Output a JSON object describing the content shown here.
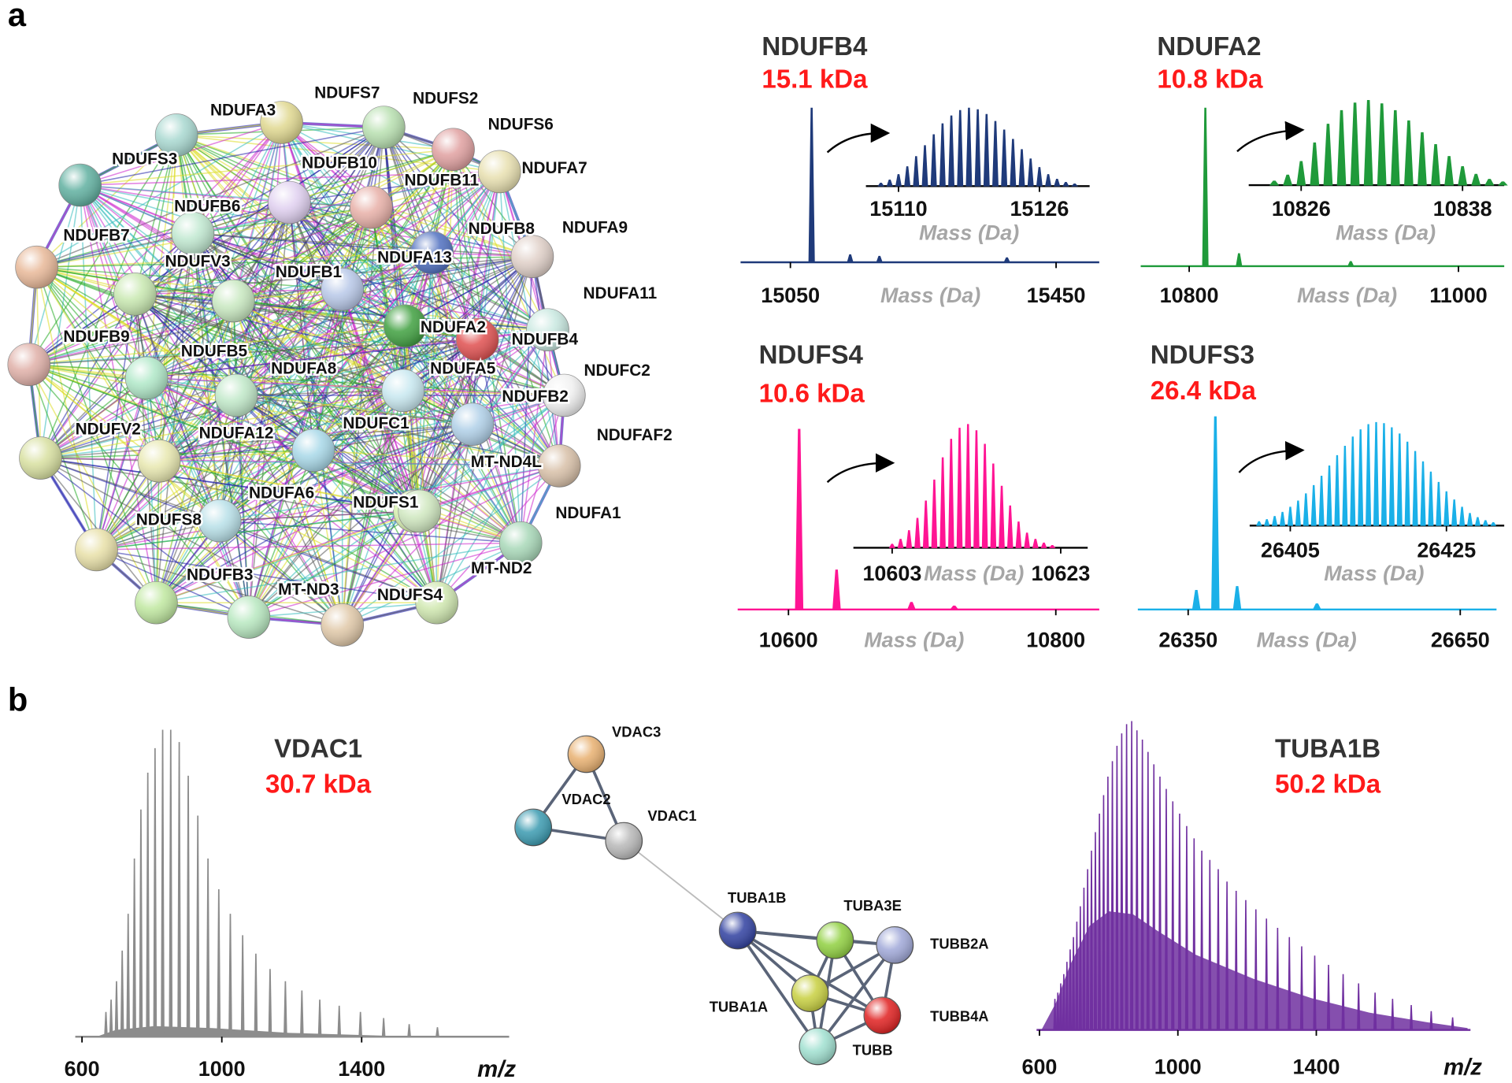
{
  "panel_labels": [
    "a",
    "b"
  ],
  "network_a": {
    "nodes": [
      {
        "label": "NDUFA3"
      },
      {
        "label": "NDUFS7"
      },
      {
        "label": "NDUFS2"
      },
      {
        "label": "NDUFS6"
      },
      {
        "label": "NDUFS3"
      },
      {
        "label": "NDUFB10"
      },
      {
        "label": "NDUFB11"
      },
      {
        "label": "NDUFA7"
      },
      {
        "label": "NDUFB6"
      },
      {
        "label": "NDUFB7"
      },
      {
        "label": "NDUFB8"
      },
      {
        "label": "NDUFA9"
      },
      {
        "label": "NDUFA13"
      },
      {
        "label": "NDUFB1"
      },
      {
        "label": "NDUFV3"
      },
      {
        "label": "NDUFA2"
      },
      {
        "label": "NDUFA11"
      },
      {
        "label": "NDUFB4"
      },
      {
        "label": "NDUFB9"
      },
      {
        "label": "NDUFB5"
      },
      {
        "label": "NDUFA8"
      },
      {
        "label": "NDUFA5"
      },
      {
        "label": "NDUFC2"
      },
      {
        "label": "NDUFB2"
      },
      {
        "label": "NDUFC1"
      },
      {
        "label": "NDUFAF2"
      },
      {
        "label": "NDUFV2"
      },
      {
        "label": "NDUFA12"
      },
      {
        "label": "NDUFS1"
      },
      {
        "label": "NDUFA6"
      },
      {
        "label": "MT-ND4L"
      },
      {
        "label": "NDUFA1"
      },
      {
        "label": "NDUFS8"
      },
      {
        "label": "NDUFB3"
      },
      {
        "label": "MT-ND3"
      },
      {
        "label": "NDUFS4"
      },
      {
        "label": "MT-ND2"
      }
    ]
  },
  "network_b": {
    "nodes": [
      {
        "label": "VDAC3"
      },
      {
        "label": "VDAC2"
      },
      {
        "label": "VDAC1"
      },
      {
        "label": "TUBA1B"
      },
      {
        "label": "TUBA3E"
      },
      {
        "label": "TUBB2A"
      },
      {
        "label": "TUBA1A"
      },
      {
        "label": "TUBB4A"
      },
      {
        "label": "TUBB"
      }
    ]
  },
  "chart_data": [
    {
      "type": "spectrum",
      "title": "NDUFB4",
      "subtitle": "15.1 kDa",
      "xlabel": "Mass (Da)",
      "color": "#1f3a7a",
      "xlim": [
        14975,
        15515
      ],
      "xticks": [
        15050,
        15450
      ],
      "ylim": [
        0,
        100
      ],
      "x": [
        15082,
        15140,
        15184,
        15376
      ],
      "values": [
        100,
        5,
        4,
        3
      ],
      "inset": {
        "xlabel": "Mass (Da)",
        "xlim": [
          15106.3,
          15131.7
        ],
        "xticks": [
          15110,
          15126
        ],
        "ylim": [
          0,
          100
        ],
        "x": [
          15108,
          15109,
          15110,
          15111,
          15112,
          15113,
          15114,
          15115,
          15116,
          15117,
          15118,
          15119,
          15120,
          15121,
          15122,
          15123,
          15124,
          15125,
          15126,
          15127,
          15128,
          15129,
          15130
        ],
        "values": [
          4,
          8,
          15,
          25,
          38,
          52,
          66,
          80,
          90,
          97,
          100,
          98,
          92,
          83,
          72,
          60,
          47,
          35,
          24,
          15,
          9,
          5,
          3
        ]
      }
    },
    {
      "type": "spectrum",
      "title": "NDUFA2",
      "subtitle": "10.8 kDa",
      "xlabel": "Mass (Da)",
      "color": "#1f9a3a",
      "xlim": [
        10764,
        11034
      ],
      "xticks": [
        10800,
        11000
      ],
      "ylim": [
        0,
        100
      ],
      "x": [
        10812,
        10837,
        10920
      ],
      "values": [
        100,
        8,
        3
      ],
      "inset": {
        "xlabel": "Mass (Da)",
        "xlim": [
          10822.1,
          10841.1
        ],
        "xticks": [
          10826,
          10838
        ],
        "ylim": [
          0,
          100
        ],
        "x": [
          10824,
          10825,
          10826,
          10827,
          10828,
          10829,
          10830,
          10831,
          10832,
          10833,
          10834,
          10835,
          10836,
          10837,
          10838,
          10839,
          10840,
          10841
        ],
        "values": [
          5,
          12,
          28,
          50,
          72,
          88,
          97,
          100,
          96,
          88,
          76,
          62,
          48,
          34,
          22,
          13,
          7,
          4
        ]
      }
    },
    {
      "type": "spectrum",
      "title": "NDUFS4",
      "subtitle": "10.6 kDa",
      "xlabel": "Mass (Da)",
      "color": "#ff1493",
      "xlim": [
        10562,
        10832.5
      ],
      "xticks": [
        10600,
        10800
      ],
      "ylim": [
        0,
        100
      ],
      "x": [
        10608,
        10636,
        10692,
        10724
      ],
      "values": [
        100,
        22,
        4,
        2
      ],
      "inset": {
        "xlabel": "Mass (Da)",
        "xlim": [
          10598.4,
          10626.2
        ],
        "xticks": [
          10603,
          10623
        ],
        "ylim": [
          0,
          100
        ],
        "x": [
          10603,
          10604,
          10605,
          10606,
          10607,
          10608,
          10609,
          10610,
          10611,
          10612,
          10613,
          10614,
          10615,
          10616,
          10617,
          10618,
          10619,
          10620,
          10621,
          10622
        ],
        "values": [
          3,
          7,
          14,
          24,
          38,
          55,
          73,
          88,
          97,
          100,
          95,
          84,
          68,
          50,
          34,
          21,
          12,
          7,
          4,
          2
        ]
      }
    },
    {
      "type": "spectrum",
      "title": "NDUFS3",
      "subtitle": "26.4 kDa",
      "xlabel": "Mass (Da)",
      "color": "#1ab0e8",
      "xlim": [
        26294.5,
        26690
      ],
      "xticks": [
        26350,
        26650
      ],
      "ylim": [
        0,
        100
      ],
      "x": [
        26359,
        26380,
        26404,
        26492
      ],
      "values": [
        10,
        100,
        12,
        3
      ],
      "inset": {
        "xlabel": "Mass (Da)",
        "xlim": [
          26399.8,
          26432.4
        ],
        "xticks": [
          26405,
          26425
        ],
        "ylim": [
          0,
          100
        ],
        "x": [
          26401,
          26402,
          26403,
          26404,
          26405,
          26406,
          26407,
          26408,
          26409,
          26410,
          26411,
          26412,
          26413,
          26414,
          26415,
          26416,
          26417,
          26418,
          26419,
          26420,
          26421,
          26422,
          26423,
          26424,
          26425,
          26426,
          26427,
          26428,
          26429,
          26430,
          26431
        ],
        "values": [
          4,
          6,
          9,
          13,
          18,
          24,
          31,
          39,
          48,
          58,
          68,
          77,
          86,
          93,
          98,
          100,
          99,
          95,
          89,
          81,
          72,
          62,
          52,
          42,
          33,
          25,
          18,
          12,
          8,
          5,
          3
        ]
      }
    },
    {
      "type": "spectrum",
      "title": "VDAC1",
      "subtitle": "30.7 kDa",
      "xlabel": "m/z",
      "color": "#8c8c8c",
      "xlim": [
        580.7,
        1822
      ],
      "xticks": [
        600,
        1000,
        1400
      ],
      "ylim": [
        0,
        100
      ],
      "x": [
        668.4,
        683.2,
        698.7,
        715.0,
        732.0,
        749.8,
        768.5,
        788.2,
        808.9,
        830.7,
        853.8,
        878.1,
        903.9,
        931.3,
        960.4,
        991.3,
        1024.3,
        1059.6,
        1097.4,
        1138.0,
        1181.8,
        1229.0,
        1280.2,
        1335.8,
        1396.5,
        1462.9,
        1536.0,
        1616.8
      ],
      "values": [
        8,
        12,
        18,
        28,
        40,
        58,
        74,
        86,
        94,
        100,
        100,
        96,
        85,
        72,
        58,
        48,
        40,
        33,
        27,
        22,
        18,
        15,
        12,
        10,
        8,
        6,
        4,
        3
      ]
    },
    {
      "type": "spectrum",
      "title": "TUBA1B",
      "subtitle": "50.2 kDa",
      "xlabel": "m/z",
      "color": "#7030a0",
      "xlim": [
        591.7,
        1845.5
      ],
      "xticks": [
        600,
        1000,
        1400
      ],
      "ylim": [
        0,
        100
      ],
      "x": [
        644.6,
        653.0,
        661.5,
        670.3,
        679.4,
        688.7,
        698.2,
        708.0,
        718.1,
        728.5,
        739.2,
        750.3,
        761.6,
        773.3,
        785.4,
        797.8,
        810.7,
        824.0,
        837.7,
        851.8,
        866.5,
        881.7,
        897.4,
        913.7,
        930.6,
        948.2,
        966.4,
        985.3,
        1005.0,
        1025.5,
        1046.8,
        1069.1,
        1092.3,
        1116.6,
        1141.9,
        1168.4,
        1196.2,
        1225.4,
        1256.0,
        1288.2,
        1322.1,
        1357.8,
        1395.4,
        1435.3,
        1477.5,
        1522.2,
        1569.8,
        1620.4,
        1674.3,
        1732.0,
        1793.9
      ],
      "values": [
        10,
        12,
        15,
        18,
        22,
        26,
        30,
        35,
        40,
        46,
        52,
        58,
        64,
        70,
        76,
        82,
        87,
        92,
        96,
        99,
        100,
        97,
        94,
        90,
        86,
        82,
        78,
        74,
        70,
        66,
        62,
        58,
        55,
        52,
        48,
        45,
        42,
        39,
        36,
        33,
        30,
        27,
        24,
        21,
        18,
        15,
        12,
        10,
        8,
        6,
        4
      ]
    }
  ]
}
